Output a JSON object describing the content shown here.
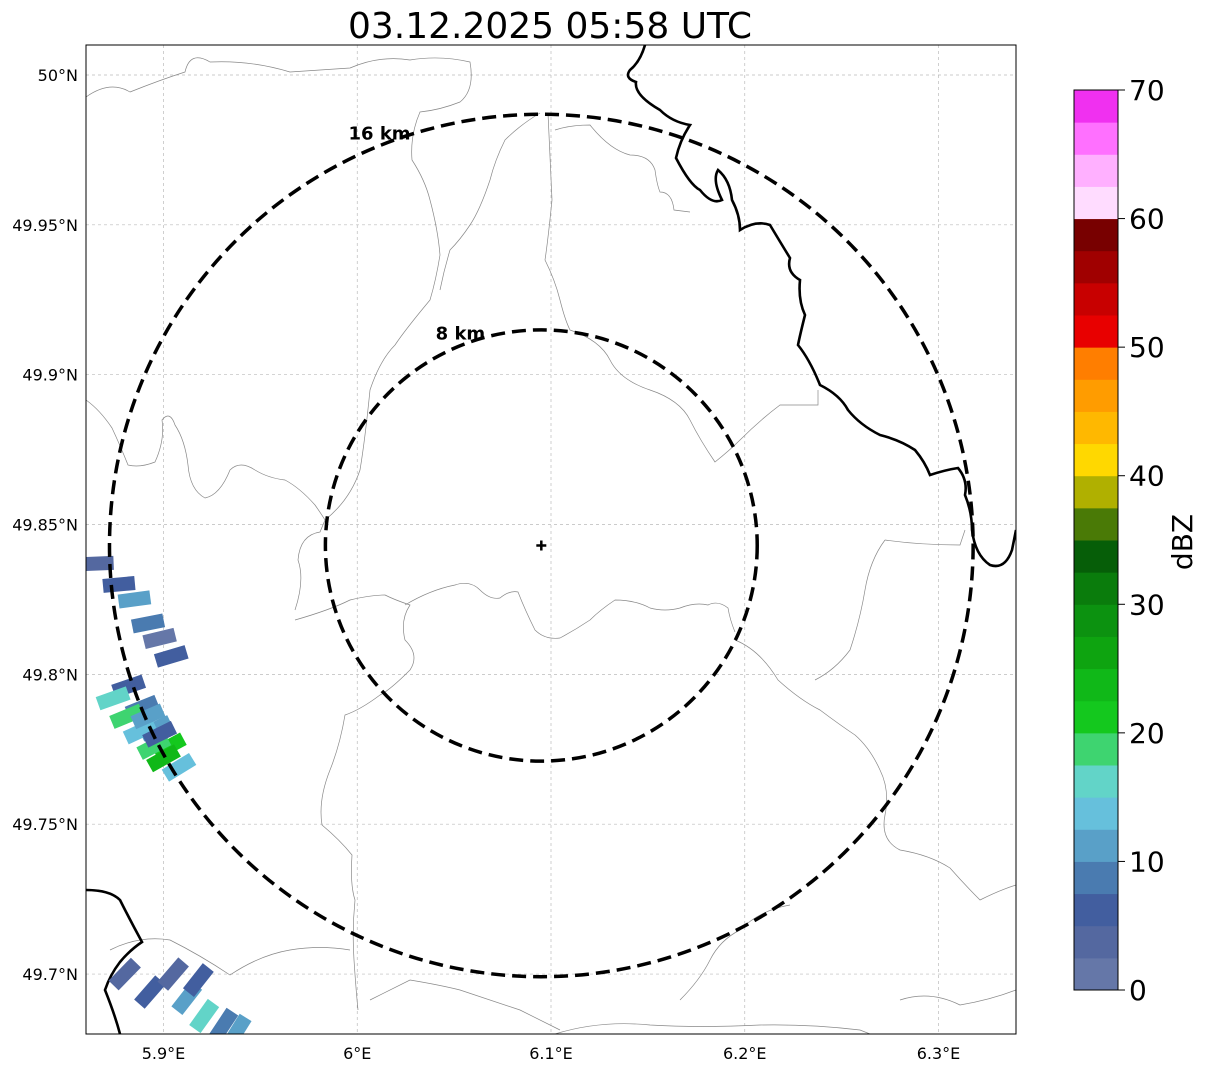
{
  "title": "03.12.2025 05:58 UTC",
  "map": {
    "lon_range": [
      5.86,
      6.34
    ],
    "lat_range": [
      49.68,
      50.01
    ],
    "x_ticks": [
      {
        "value": 5.9,
        "label": "5.9°E"
      },
      {
        "value": 6.0,
        "label": "6°E"
      },
      {
        "value": 6.1,
        "label": "6.1°E"
      },
      {
        "value": 6.2,
        "label": "6.2°E"
      },
      {
        "value": 6.3,
        "label": "6.3°E"
      }
    ],
    "y_ticks": [
      {
        "value": 50.0,
        "label": "50°N"
      },
      {
        "value": 49.95,
        "label": "49.95°N"
      },
      {
        "value": 49.9,
        "label": "49.9°N"
      },
      {
        "value": 49.85,
        "label": "49.85°N"
      },
      {
        "value": 49.8,
        "label": "49.8°N"
      },
      {
        "value": 49.75,
        "label": "49.75°N"
      },
      {
        "value": 49.7,
        "label": "49.7°N"
      }
    ],
    "grid": true,
    "radar_center": {
      "lon": 6.095,
      "lat": 49.843
    },
    "range_rings": [
      {
        "radius_km": 8,
        "label": "8 km"
      },
      {
        "radius_km": 16,
        "label": "16 km"
      }
    ]
  },
  "colorbar": {
    "label": "dBZ",
    "min": 0,
    "max": 70,
    "ticks": [
      0,
      10,
      20,
      30,
      40,
      50,
      60,
      70
    ],
    "colors": [
      "#6577a8",
      "#5468a0",
      "#425e9f",
      "#4a7bb0",
      "#59a0c8",
      "#66c0dc",
      "#62d4c8",
      "#3ed470",
      "#14c81e",
      "#10b818",
      "#0ea410",
      "#0c9210",
      "#0a7c0c",
      "#065e08",
      "#4a7a06",
      "#b0b000",
      "#ffd800",
      "#ffb800",
      "#ff9c00",
      "#ff7e00",
      "#e80000",
      "#c80000",
      "#a00000",
      "#780000",
      "#ffdcff",
      "#ffb0ff",
      "#ff70ff",
      "#f030f0"
    ]
  },
  "echoes": [
    {
      "lon": 5.866,
      "lat": 49.837,
      "dbz": 3
    },
    {
      "lon": 5.877,
      "lat": 49.83,
      "dbz": 6
    },
    {
      "lon": 5.885,
      "lat": 49.825,
      "dbz": 12
    },
    {
      "lon": 5.892,
      "lat": 49.817,
      "dbz": 8
    },
    {
      "lon": 5.898,
      "lat": 49.812,
      "dbz": 2
    },
    {
      "lon": 5.904,
      "lat": 49.806,
      "dbz": 5
    },
    {
      "lon": 5.882,
      "lat": 49.796,
      "dbz": 6
    },
    {
      "lon": 5.889,
      "lat": 49.789,
      "dbz": 8
    },
    {
      "lon": 5.896,
      "lat": 49.782,
      "dbz": 12
    },
    {
      "lon": 5.903,
      "lat": 49.776,
      "dbz": 22
    },
    {
      "lon": 5.908,
      "lat": 49.769,
      "dbz": 14
    },
    {
      "lon": 5.874,
      "lat": 49.792,
      "dbz": 16
    },
    {
      "lon": 5.881,
      "lat": 49.786,
      "dbz": 19
    },
    {
      "lon": 5.888,
      "lat": 49.781,
      "dbz": 13
    },
    {
      "lon": 5.895,
      "lat": 49.776,
      "dbz": 18
    },
    {
      "lon": 5.9,
      "lat": 49.772,
      "dbz": 24
    },
    {
      "lon": 5.892,
      "lat": 49.786,
      "dbz": 10
    },
    {
      "lon": 5.898,
      "lat": 49.78,
      "dbz": 6
    },
    {
      "lon": 5.88,
      "lat": 49.7,
      "dbz": 4
    },
    {
      "lon": 5.893,
      "lat": 49.694,
      "dbz": 6
    },
    {
      "lon": 5.905,
      "lat": 49.7,
      "dbz": 3
    },
    {
      "lon": 5.912,
      "lat": 49.692,
      "dbz": 12
    },
    {
      "lon": 5.921,
      "lat": 49.686,
      "dbz": 15
    },
    {
      "lon": 5.931,
      "lat": 49.683,
      "dbz": 8
    },
    {
      "lon": 5.918,
      "lat": 49.698,
      "dbz": 5
    },
    {
      "lon": 5.938,
      "lat": 49.681,
      "dbz": 10
    }
  ]
}
